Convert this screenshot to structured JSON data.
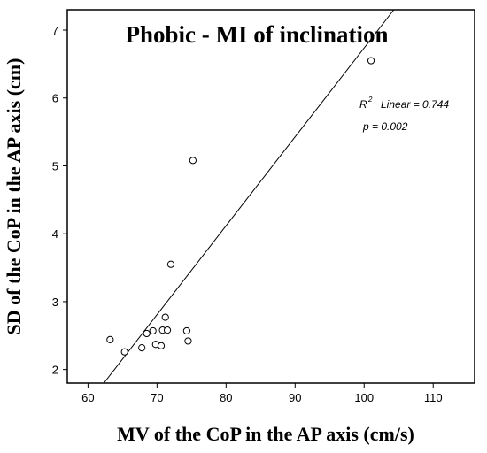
{
  "chart_data": {
    "type": "scatter",
    "title": "Phobic - MI of inclination",
    "xlabel": "MV of the CoP in the AP axis (cm/s)",
    "ylabel": "SD of the CoP in the AP axis (cm)",
    "xlim": [
      57,
      116
    ],
    "ylim": [
      1.8,
      7.3
    ],
    "x_ticks": [
      60,
      70,
      80,
      90,
      100,
      110
    ],
    "y_ticks": [
      2,
      3,
      4,
      5,
      6,
      7
    ],
    "grid": false,
    "legend": "none",
    "marker": "open-circle",
    "x": [
      63.2,
      65.3,
      67.8,
      68.5,
      69.4,
      69.8,
      70.6,
      70.8,
      71.2,
      71.5,
      72.0,
      74.3,
      74.5,
      75.2,
      101.0
    ],
    "y": [
      2.44,
      2.26,
      2.32,
      2.53,
      2.57,
      2.37,
      2.35,
      2.58,
      2.77,
      2.58,
      3.55,
      2.57,
      2.42,
      5.08,
      6.55
    ],
    "fit_line": {
      "type": "linear",
      "r2_symbol": "R",
      "r2_exponent": "2",
      "r2_text": "Linear = 0.744",
      "p_text": "p = 0.002",
      "start": [
        62.3,
        1.8
      ],
      "end": [
        104.3,
        7.3
      ]
    }
  },
  "colors": {
    "axis": "#000000",
    "marker_stroke": "#000000",
    "marker_fill": "#ffffff",
    "fit_line": "#000000"
  }
}
